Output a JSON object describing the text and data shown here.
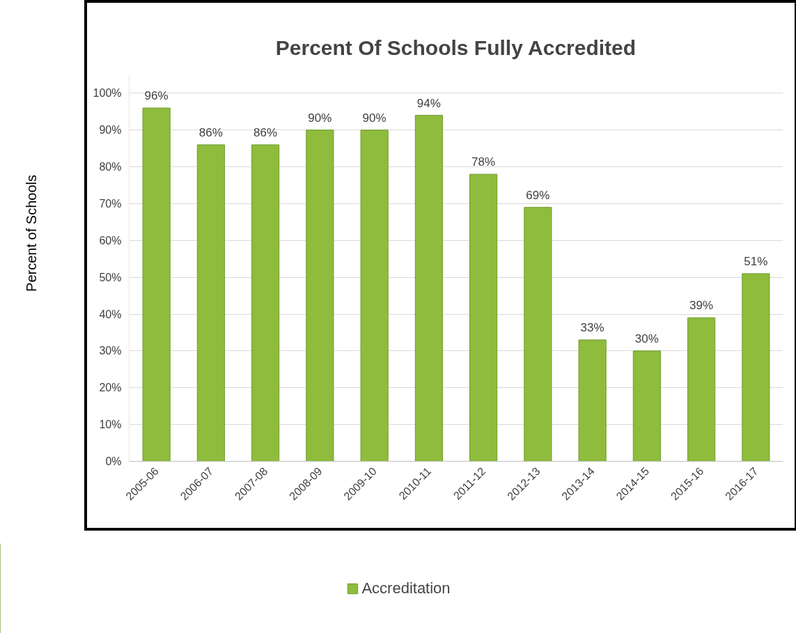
{
  "chart_data": {
    "type": "bar",
    "title": "Percent Of Schools Fully Accredited",
    "ylabel": "Percent of Schools",
    "categories": [
      "2005-06",
      "2006-07",
      "2007-08",
      "2008-09",
      "2009-10",
      "2010-11",
      "2011-12",
      "2012-13",
      "2013-14",
      "2014-15",
      "2015-16",
      "2016-17"
    ],
    "series": [
      {
        "name": "Accreditation",
        "color": "#8fbc3c",
        "values": [
          96,
          86,
          86,
          90,
          90,
          94,
          78,
          69,
          33,
          30,
          39,
          51
        ],
        "value_labels": [
          "96%",
          "86%",
          "86%",
          "90%",
          "90%",
          "94%",
          "78%",
          "69%",
          "33%",
          "30%",
          "39%",
          "51%"
        ]
      }
    ],
    "ylim": [
      0,
      105
    ],
    "yticks": [
      {
        "value": 0,
        "label": "0%"
      },
      {
        "value": 10,
        "label": "10%"
      },
      {
        "value": 20,
        "label": "20%"
      },
      {
        "value": 30,
        "label": "30%"
      },
      {
        "value": 40,
        "label": "40%"
      },
      {
        "value": 50,
        "label": "50%"
      },
      {
        "value": 60,
        "label": "60%"
      },
      {
        "value": 70,
        "label": "70%"
      },
      {
        "value": 80,
        "label": "80%"
      },
      {
        "value": 90,
        "label": "90%"
      },
      {
        "value": 100,
        "label": "100%"
      }
    ],
    "grid": "y",
    "legend": "bottom"
  }
}
